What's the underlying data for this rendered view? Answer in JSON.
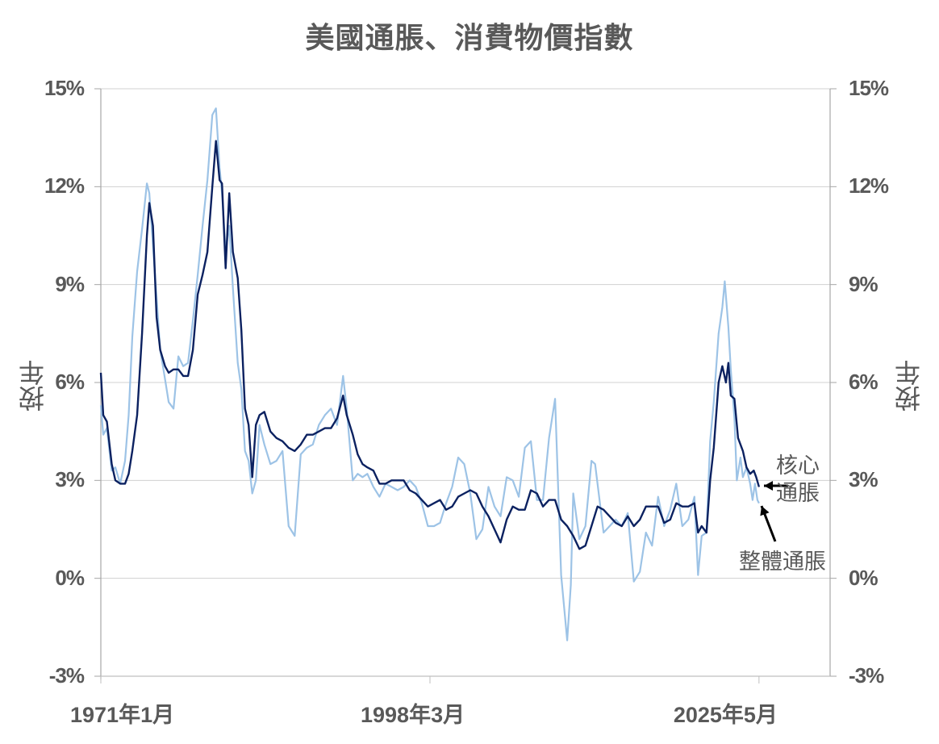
{
  "title": "美國通脹、消費物價指數",
  "chart_data": {
    "type": "line",
    "title": "美國通脹、消費物價指數",
    "xlabel": "",
    "ylabel": "按年",
    "ylabel_right": "按年",
    "ylim": [
      -3,
      15
    ],
    "yticks": [
      "15%",
      "12%",
      "9%",
      "6%",
      "3%",
      "0%",
      "-3%"
    ],
    "ytick_values": [
      15,
      12,
      9,
      6,
      3,
      0,
      -3
    ],
    "xticks": [
      "1971年1月",
      "1998年3月",
      "2025年5月"
    ],
    "xtick_values": [
      1971.0,
      1998.17,
      2025.33
    ],
    "xlim": [
      1971.0,
      2031.2
    ],
    "grid": true,
    "legend_position": "annotations at right end",
    "annotations": [
      {
        "text_line1": "核心",
        "text_line2": "通脹",
        "target": "core"
      },
      {
        "text": "整體通脹",
        "target": "headline"
      }
    ],
    "series": [
      {
        "name": "核心通脹",
        "color": "#0b2160",
        "points": [
          [
            1971.0,
            6.3
          ],
          [
            1971.2,
            5.0
          ],
          [
            1971.5,
            4.8
          ],
          [
            1971.9,
            3.5
          ],
          [
            1972.2,
            3.0
          ],
          [
            1972.6,
            2.9
          ],
          [
            1973.0,
            2.9
          ],
          [
            1973.3,
            3.2
          ],
          [
            1973.6,
            3.9
          ],
          [
            1974.0,
            5.0
          ],
          [
            1974.4,
            7.5
          ],
          [
            1974.8,
            10.5
          ],
          [
            1975.0,
            11.5
          ],
          [
            1975.3,
            10.8
          ],
          [
            1975.6,
            8.0
          ],
          [
            1975.9,
            7.0
          ],
          [
            1976.3,
            6.5
          ],
          [
            1976.6,
            6.3
          ],
          [
            1977.0,
            6.4
          ],
          [
            1977.4,
            6.4
          ],
          [
            1977.8,
            6.2
          ],
          [
            1978.2,
            6.2
          ],
          [
            1978.6,
            7.0
          ],
          [
            1979.0,
            8.7
          ],
          [
            1979.4,
            9.3
          ],
          [
            1979.8,
            10.0
          ],
          [
            1980.2,
            12.0
          ],
          [
            1980.5,
            13.4
          ],
          [
            1980.8,
            12.2
          ],
          [
            1981.0,
            12.1
          ],
          [
            1981.3,
            9.5
          ],
          [
            1981.6,
            11.8
          ],
          [
            1981.9,
            10.0
          ],
          [
            1982.3,
            9.2
          ],
          [
            1982.6,
            7.6
          ],
          [
            1982.9,
            5.2
          ],
          [
            1983.2,
            4.7
          ],
          [
            1983.5,
            3.1
          ],
          [
            1983.8,
            4.7
          ],
          [
            1984.1,
            5.0
          ],
          [
            1984.5,
            5.1
          ],
          [
            1985.0,
            4.5
          ],
          [
            1985.5,
            4.3
          ],
          [
            1986.0,
            4.2
          ],
          [
            1986.5,
            4.0
          ],
          [
            1987.0,
            3.9
          ],
          [
            1987.5,
            4.1
          ],
          [
            1988.0,
            4.4
          ],
          [
            1988.5,
            4.4
          ],
          [
            1989.0,
            4.5
          ],
          [
            1989.5,
            4.6
          ],
          [
            1990.0,
            4.6
          ],
          [
            1990.5,
            4.9
          ],
          [
            1991.0,
            5.6
          ],
          [
            1991.3,
            5.0
          ],
          [
            1991.8,
            4.4
          ],
          [
            1992.2,
            3.8
          ],
          [
            1992.6,
            3.5
          ],
          [
            1993.0,
            3.4
          ],
          [
            1993.5,
            3.3
          ],
          [
            1994.0,
            2.9
          ],
          [
            1994.5,
            2.9
          ],
          [
            1995.0,
            3.0
          ],
          [
            1995.5,
            3.0
          ],
          [
            1996.0,
            3.0
          ],
          [
            1996.5,
            2.7
          ],
          [
            1997.0,
            2.6
          ],
          [
            1997.5,
            2.4
          ],
          [
            1998.0,
            2.2
          ],
          [
            1998.5,
            2.3
          ],
          [
            1999.0,
            2.4
          ],
          [
            1999.5,
            2.1
          ],
          [
            2000.0,
            2.2
          ],
          [
            2000.5,
            2.5
          ],
          [
            2001.0,
            2.6
          ],
          [
            2001.5,
            2.7
          ],
          [
            2002.0,
            2.6
          ],
          [
            2002.5,
            2.2
          ],
          [
            2003.0,
            1.9
          ],
          [
            2003.5,
            1.5
          ],
          [
            2004.0,
            1.1
          ],
          [
            2004.5,
            1.8
          ],
          [
            2005.0,
            2.2
          ],
          [
            2005.5,
            2.1
          ],
          [
            2006.0,
            2.1
          ],
          [
            2006.5,
            2.7
          ],
          [
            2007.0,
            2.6
          ],
          [
            2007.5,
            2.2
          ],
          [
            2008.0,
            2.4
          ],
          [
            2008.5,
            2.4
          ],
          [
            2009.0,
            1.8
          ],
          [
            2009.5,
            1.6
          ],
          [
            2010.0,
            1.3
          ],
          [
            2010.5,
            0.9
          ],
          [
            2011.0,
            1.0
          ],
          [
            2011.5,
            1.6
          ],
          [
            2012.0,
            2.2
          ],
          [
            2012.5,
            2.1
          ],
          [
            2013.0,
            1.9
          ],
          [
            2013.5,
            1.7
          ],
          [
            2014.0,
            1.6
          ],
          [
            2014.5,
            1.9
          ],
          [
            2015.0,
            1.6
          ],
          [
            2015.5,
            1.8
          ],
          [
            2016.0,
            2.2
          ],
          [
            2016.5,
            2.2
          ],
          [
            2017.0,
            2.2
          ],
          [
            2017.5,
            1.7
          ],
          [
            2018.0,
            1.8
          ],
          [
            2018.5,
            2.3
          ],
          [
            2019.0,
            2.2
          ],
          [
            2019.5,
            2.2
          ],
          [
            2020.0,
            2.3
          ],
          [
            2020.3,
            1.4
          ],
          [
            2020.6,
            1.6
          ],
          [
            2021.0,
            1.4
          ],
          [
            2021.3,
            3.0
          ],
          [
            2021.6,
            4.0
          ],
          [
            2022.0,
            6.0
          ],
          [
            2022.3,
            6.5
          ],
          [
            2022.6,
            6.0
          ],
          [
            2022.8,
            6.6
          ],
          [
            2023.0,
            5.6
          ],
          [
            2023.3,
            5.5
          ],
          [
            2023.6,
            4.3
          ],
          [
            2024.0,
            3.9
          ],
          [
            2024.3,
            3.4
          ],
          [
            2024.6,
            3.2
          ],
          [
            2024.9,
            3.3
          ],
          [
            2025.1,
            3.1
          ],
          [
            2025.33,
            2.8
          ]
        ]
      },
      {
        "name": "整體通脹",
        "color": "#9dc3e6",
        "points": [
          [
            1971.0,
            5.3
          ],
          [
            1971.2,
            4.4
          ],
          [
            1971.5,
            4.6
          ],
          [
            1971.9,
            3.3
          ],
          [
            1972.2,
            3.4
          ],
          [
            1972.6,
            2.9
          ],
          [
            1973.0,
            3.6
          ],
          [
            1973.3,
            5.0
          ],
          [
            1973.6,
            7.4
          ],
          [
            1974.0,
            9.4
          ],
          [
            1974.4,
            10.7
          ],
          [
            1974.8,
            12.1
          ],
          [
            1975.0,
            11.8
          ],
          [
            1975.3,
            10.2
          ],
          [
            1975.6,
            8.6
          ],
          [
            1975.9,
            7.0
          ],
          [
            1976.3,
            6.1
          ],
          [
            1976.6,
            5.4
          ],
          [
            1977.0,
            5.2
          ],
          [
            1977.4,
            6.8
          ],
          [
            1977.8,
            6.5
          ],
          [
            1978.2,
            6.6
          ],
          [
            1978.6,
            7.9
          ],
          [
            1979.0,
            9.3
          ],
          [
            1979.4,
            10.8
          ],
          [
            1979.8,
            12.2
          ],
          [
            1980.2,
            14.2
          ],
          [
            1980.5,
            14.4
          ],
          [
            1980.8,
            12.6
          ],
          [
            1981.0,
            11.8
          ],
          [
            1981.3,
            10.0
          ],
          [
            1981.6,
            10.8
          ],
          [
            1981.9,
            8.9
          ],
          [
            1982.3,
            6.6
          ],
          [
            1982.6,
            5.8
          ],
          [
            1982.9,
            3.9
          ],
          [
            1983.2,
            3.6
          ],
          [
            1983.5,
            2.6
          ],
          [
            1983.8,
            3.0
          ],
          [
            1984.1,
            4.7
          ],
          [
            1984.5,
            4.1
          ],
          [
            1985.0,
            3.5
          ],
          [
            1985.5,
            3.6
          ],
          [
            1986.0,
            3.9
          ],
          [
            1986.5,
            1.6
          ],
          [
            1987.0,
            1.3
          ],
          [
            1987.5,
            3.8
          ],
          [
            1988.0,
            4.0
          ],
          [
            1988.5,
            4.1
          ],
          [
            1989.0,
            4.7
          ],
          [
            1989.5,
            5.0
          ],
          [
            1990.0,
            5.2
          ],
          [
            1990.5,
            4.7
          ],
          [
            1991.0,
            6.2
          ],
          [
            1991.3,
            5.2
          ],
          [
            1991.8,
            3.0
          ],
          [
            1992.2,
            3.2
          ],
          [
            1992.6,
            3.1
          ],
          [
            1993.0,
            3.2
          ],
          [
            1993.5,
            2.8
          ],
          [
            1994.0,
            2.5
          ],
          [
            1994.5,
            2.9
          ],
          [
            1995.0,
            2.8
          ],
          [
            1995.5,
            2.7
          ],
          [
            1996.0,
            2.8
          ],
          [
            1996.5,
            3.0
          ],
          [
            1997.0,
            2.8
          ],
          [
            1997.5,
            2.3
          ],
          [
            1998.0,
            1.6
          ],
          [
            1998.5,
            1.6
          ],
          [
            1999.0,
            1.7
          ],
          [
            1999.5,
            2.3
          ],
          [
            2000.0,
            2.8
          ],
          [
            2000.5,
            3.7
          ],
          [
            2001.0,
            3.5
          ],
          [
            2001.5,
            2.6
          ],
          [
            2002.0,
            1.2
          ],
          [
            2002.5,
            1.5
          ],
          [
            2003.0,
            2.8
          ],
          [
            2003.5,
            2.2
          ],
          [
            2004.0,
            1.9
          ],
          [
            2004.5,
            3.1
          ],
          [
            2005.0,
            3.0
          ],
          [
            2005.5,
            2.5
          ],
          [
            2006.0,
            4.0
          ],
          [
            2006.5,
            4.2
          ],
          [
            2007.0,
            2.4
          ],
          [
            2007.5,
            2.4
          ],
          [
            2008.0,
            4.3
          ],
          [
            2008.5,
            5.5
          ],
          [
            2009.0,
            0.1
          ],
          [
            2009.5,
            -1.9
          ],
          [
            2009.8,
            -0.2
          ],
          [
            2010.0,
            2.6
          ],
          [
            2010.5,
            1.2
          ],
          [
            2011.0,
            1.6
          ],
          [
            2011.5,
            3.6
          ],
          [
            2011.8,
            3.5
          ],
          [
            2012.0,
            2.9
          ],
          [
            2012.5,
            1.4
          ],
          [
            2013.0,
            1.6
          ],
          [
            2013.5,
            1.8
          ],
          [
            2014.0,
            1.6
          ],
          [
            2014.5,
            2.0
          ],
          [
            2015.0,
            -0.1
          ],
          [
            2015.5,
            0.2
          ],
          [
            2016.0,
            1.4
          ],
          [
            2016.5,
            1.0
          ],
          [
            2017.0,
            2.5
          ],
          [
            2017.5,
            1.6
          ],
          [
            2018.0,
            2.1
          ],
          [
            2018.5,
            2.9
          ],
          [
            2019.0,
            1.6
          ],
          [
            2019.5,
            1.8
          ],
          [
            2020.0,
            2.5
          ],
          [
            2020.3,
            0.1
          ],
          [
            2020.6,
            1.3
          ],
          [
            2021.0,
            1.4
          ],
          [
            2021.3,
            4.2
          ],
          [
            2021.6,
            5.4
          ],
          [
            2022.0,
            7.5
          ],
          [
            2022.3,
            8.3
          ],
          [
            2022.5,
            9.1
          ],
          [
            2022.8,
            7.7
          ],
          [
            2023.0,
            6.4
          ],
          [
            2023.3,
            4.9
          ],
          [
            2023.5,
            3.0
          ],
          [
            2023.8,
            3.7
          ],
          [
            2024.0,
            3.1
          ],
          [
            2024.3,
            3.4
          ],
          [
            2024.6,
            2.9
          ],
          [
            2024.8,
            2.4
          ],
          [
            2025.0,
            2.9
          ],
          [
            2025.2,
            2.4
          ],
          [
            2025.33,
            2.3
          ]
        ]
      }
    ]
  }
}
